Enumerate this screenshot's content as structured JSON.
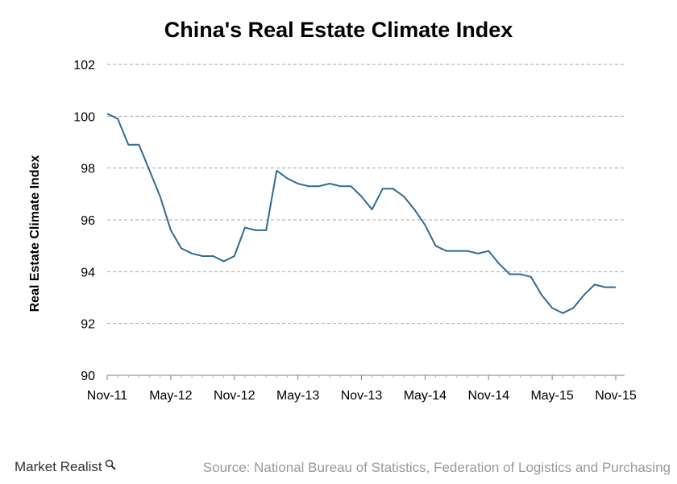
{
  "chart_data": {
    "type": "line",
    "title": "China's Real Estate Climate Index",
    "xlabel": "",
    "ylabel": "Real Estate Climate Index",
    "ylim": [
      90,
      102
    ],
    "yticks": [
      90,
      92,
      94,
      96,
      98,
      100,
      102
    ],
    "xtick_labels": [
      "Nov-11",
      "May-12",
      "Nov-12",
      "May-13",
      "Nov-13",
      "May-14",
      "Nov-14",
      "May-15",
      "Nov-15"
    ],
    "grid": true,
    "series": [
      {
        "color": "#2f6a92",
        "x": [
          "Nov-11",
          "Dec-11",
          "Jan-12",
          "Feb-12",
          "Mar-12",
          "Apr-12",
          "May-12",
          "Jun-12",
          "Jul-12",
          "Aug-12",
          "Sep-12",
          "Oct-12",
          "Nov-12",
          "Dec-12",
          "Jan-13",
          "Feb-13",
          "Mar-13",
          "Apr-13",
          "May-13",
          "Jun-13",
          "Jul-13",
          "Aug-13",
          "Sep-13",
          "Oct-13",
          "Nov-13",
          "Dec-13",
          "Jan-14",
          "Feb-14",
          "Mar-14",
          "Apr-14",
          "May-14",
          "Jun-14",
          "Jul-14",
          "Aug-14",
          "Sep-14",
          "Oct-14",
          "Nov-14",
          "Dec-14",
          "Jan-15",
          "Feb-15",
          "Mar-15",
          "Apr-15",
          "May-15",
          "Jun-15",
          "Jul-15",
          "Aug-15",
          "Sep-15",
          "Oct-15",
          "Nov-15"
        ],
        "values": [
          100.1,
          99.9,
          98.9,
          98.9,
          97.9,
          96.9,
          95.6,
          94.9,
          94.7,
          94.6,
          94.6,
          94.4,
          94.6,
          95.7,
          95.6,
          95.6,
          97.9,
          97.6,
          97.4,
          97.3,
          97.3,
          97.4,
          97.3,
          97.3,
          96.9,
          96.4,
          97.2,
          97.2,
          96.9,
          96.4,
          95.8,
          95.0,
          94.8,
          94.8,
          94.8,
          94.7,
          94.8,
          94.3,
          93.9,
          93.9,
          93.8,
          93.1,
          92.6,
          92.4,
          92.6,
          93.1,
          93.5,
          93.4,
          93.4
        ]
      }
    ]
  },
  "footer": {
    "brand": "Market Realist",
    "source": "Source: National Bureau of Statistics, Federation of Logistics and Purchasing"
  }
}
